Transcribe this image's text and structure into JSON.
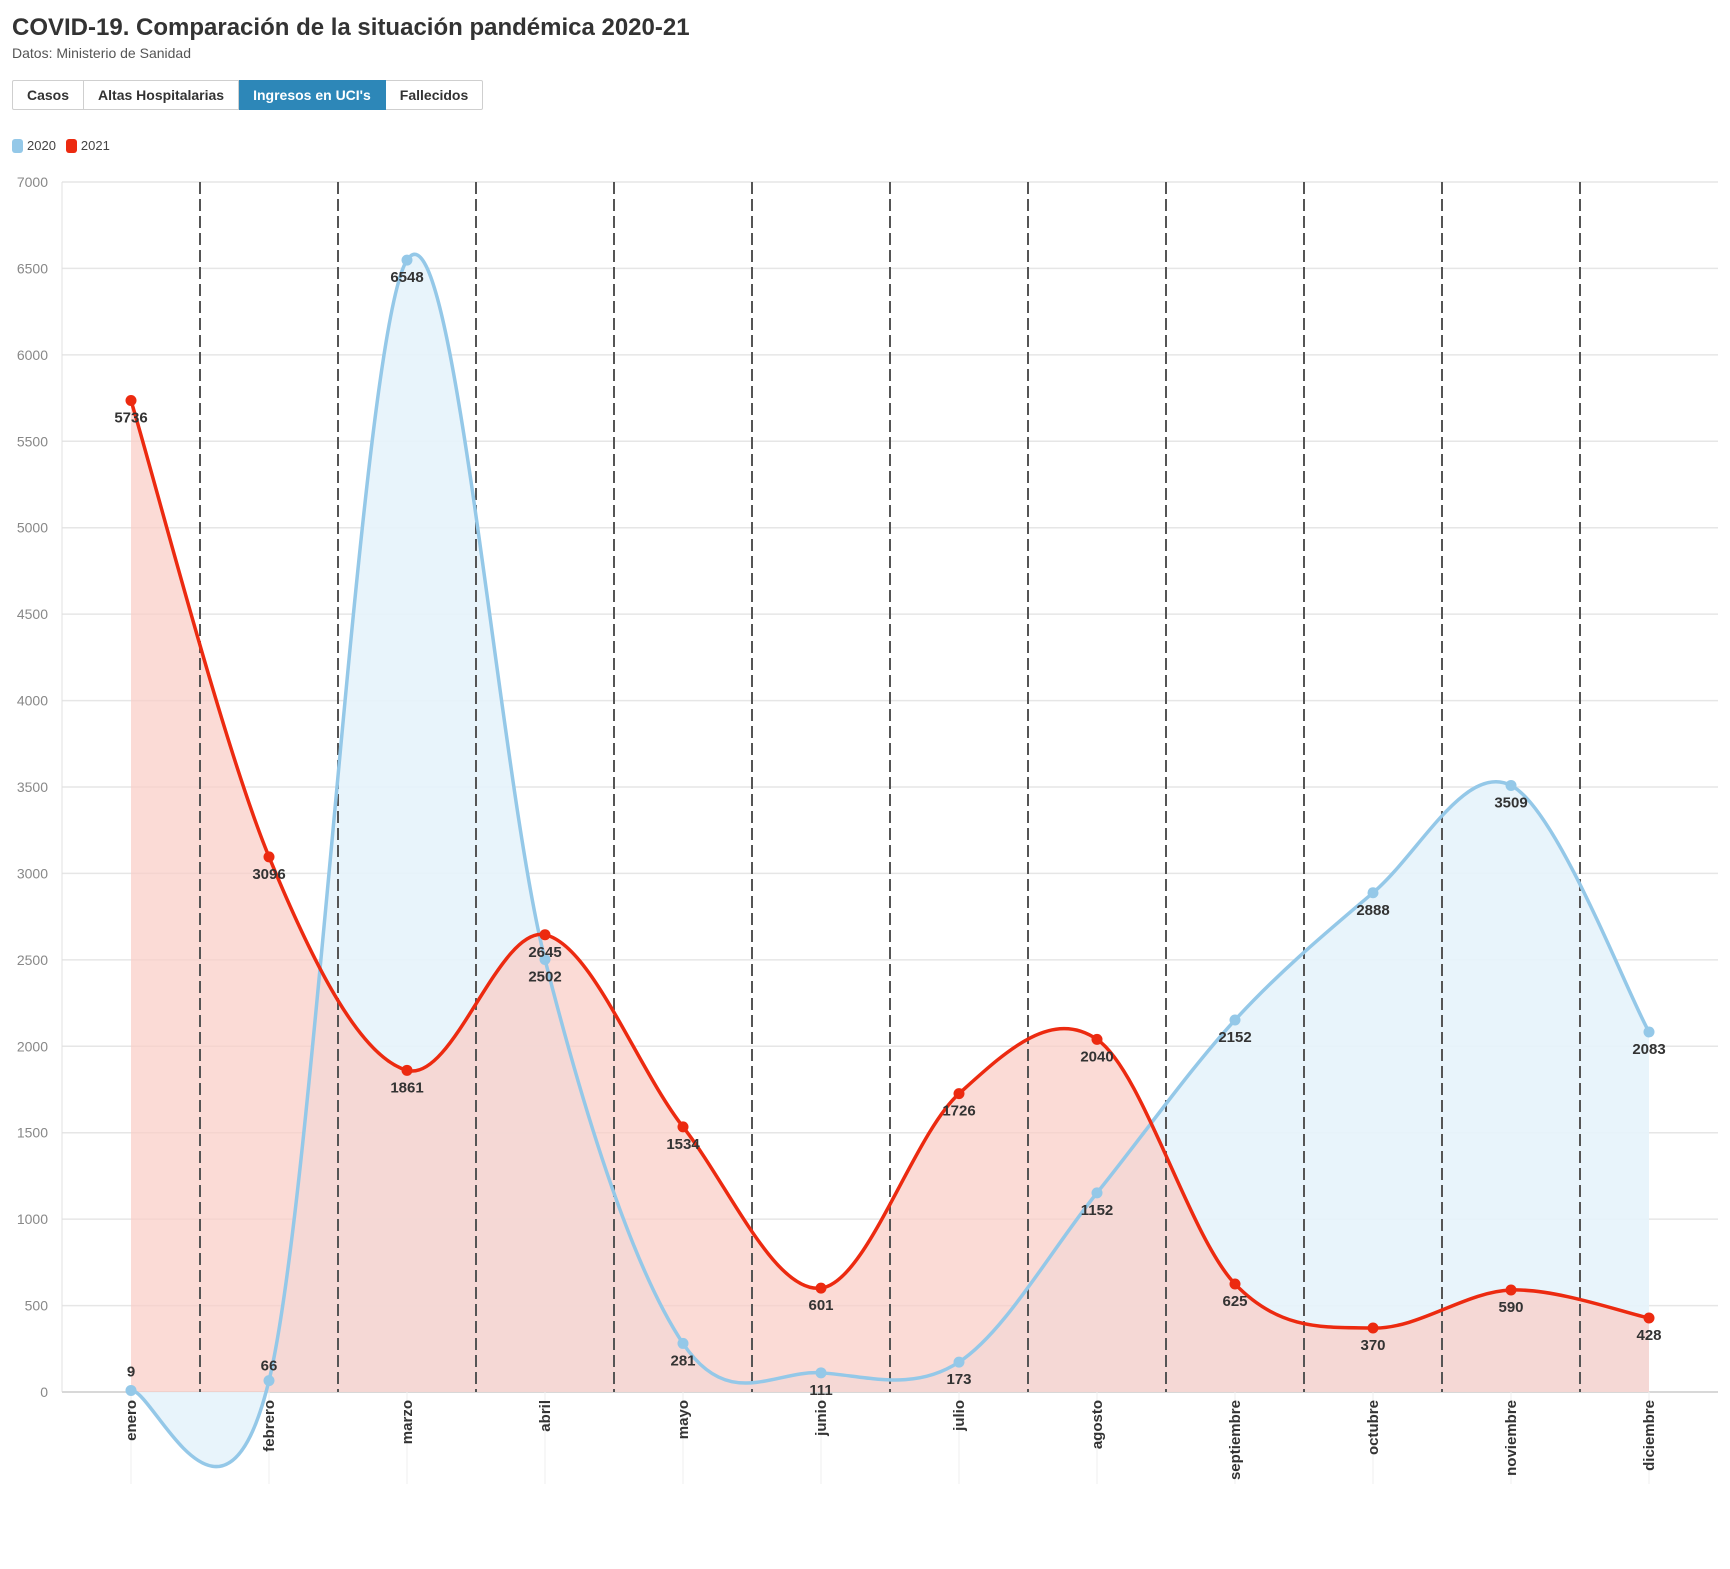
{
  "header": {
    "title": "COVID-19. Comparación de la situación pandémica 2020-21",
    "subtitle": "Datos: Ministerio de Sanidad"
  },
  "tabs": [
    {
      "label": "Casos",
      "active": false
    },
    {
      "label": "Altas Hospitalarias",
      "active": false
    },
    {
      "label": "Ingresos en UCI's",
      "active": true
    },
    {
      "label": "Fallecidos",
      "active": false
    }
  ],
  "colors": {
    "s2020_line": "#94c8e8",
    "s2020_fill": "#e6f3fb",
    "s2021_line": "#ec2a10",
    "s2021_fill": "#f9cdc6",
    "grid": "#e6e6e6",
    "divider": "#555555",
    "tab_active": "#2d87b8"
  },
  "chart_data": {
    "type": "area",
    "categories": [
      "enero",
      "febrero",
      "marzo",
      "abril",
      "mayo",
      "junio",
      "julio",
      "agosto",
      "septiembre",
      "octubre",
      "noviembre",
      "diciembre"
    ],
    "series": [
      {
        "name": "2020",
        "values": [
          9,
          66,
          6548,
          2502,
          281,
          111,
          173,
          1152,
          2152,
          2888,
          3509,
          2083
        ]
      },
      {
        "name": "2021",
        "values": [
          5736,
          3096,
          1861,
          2645,
          1534,
          601,
          1726,
          2040,
          625,
          370,
          590,
          428
        ]
      }
    ],
    "ylim": [
      0,
      7000
    ],
    "yticks": [
      0,
      500,
      1000,
      1500,
      2000,
      2500,
      3000,
      3500,
      4000,
      4500,
      5000,
      5500,
      6000,
      6500,
      7000
    ],
    "legend": "top-left",
    "grid": true,
    "data_labels": true,
    "smooth": true
  }
}
